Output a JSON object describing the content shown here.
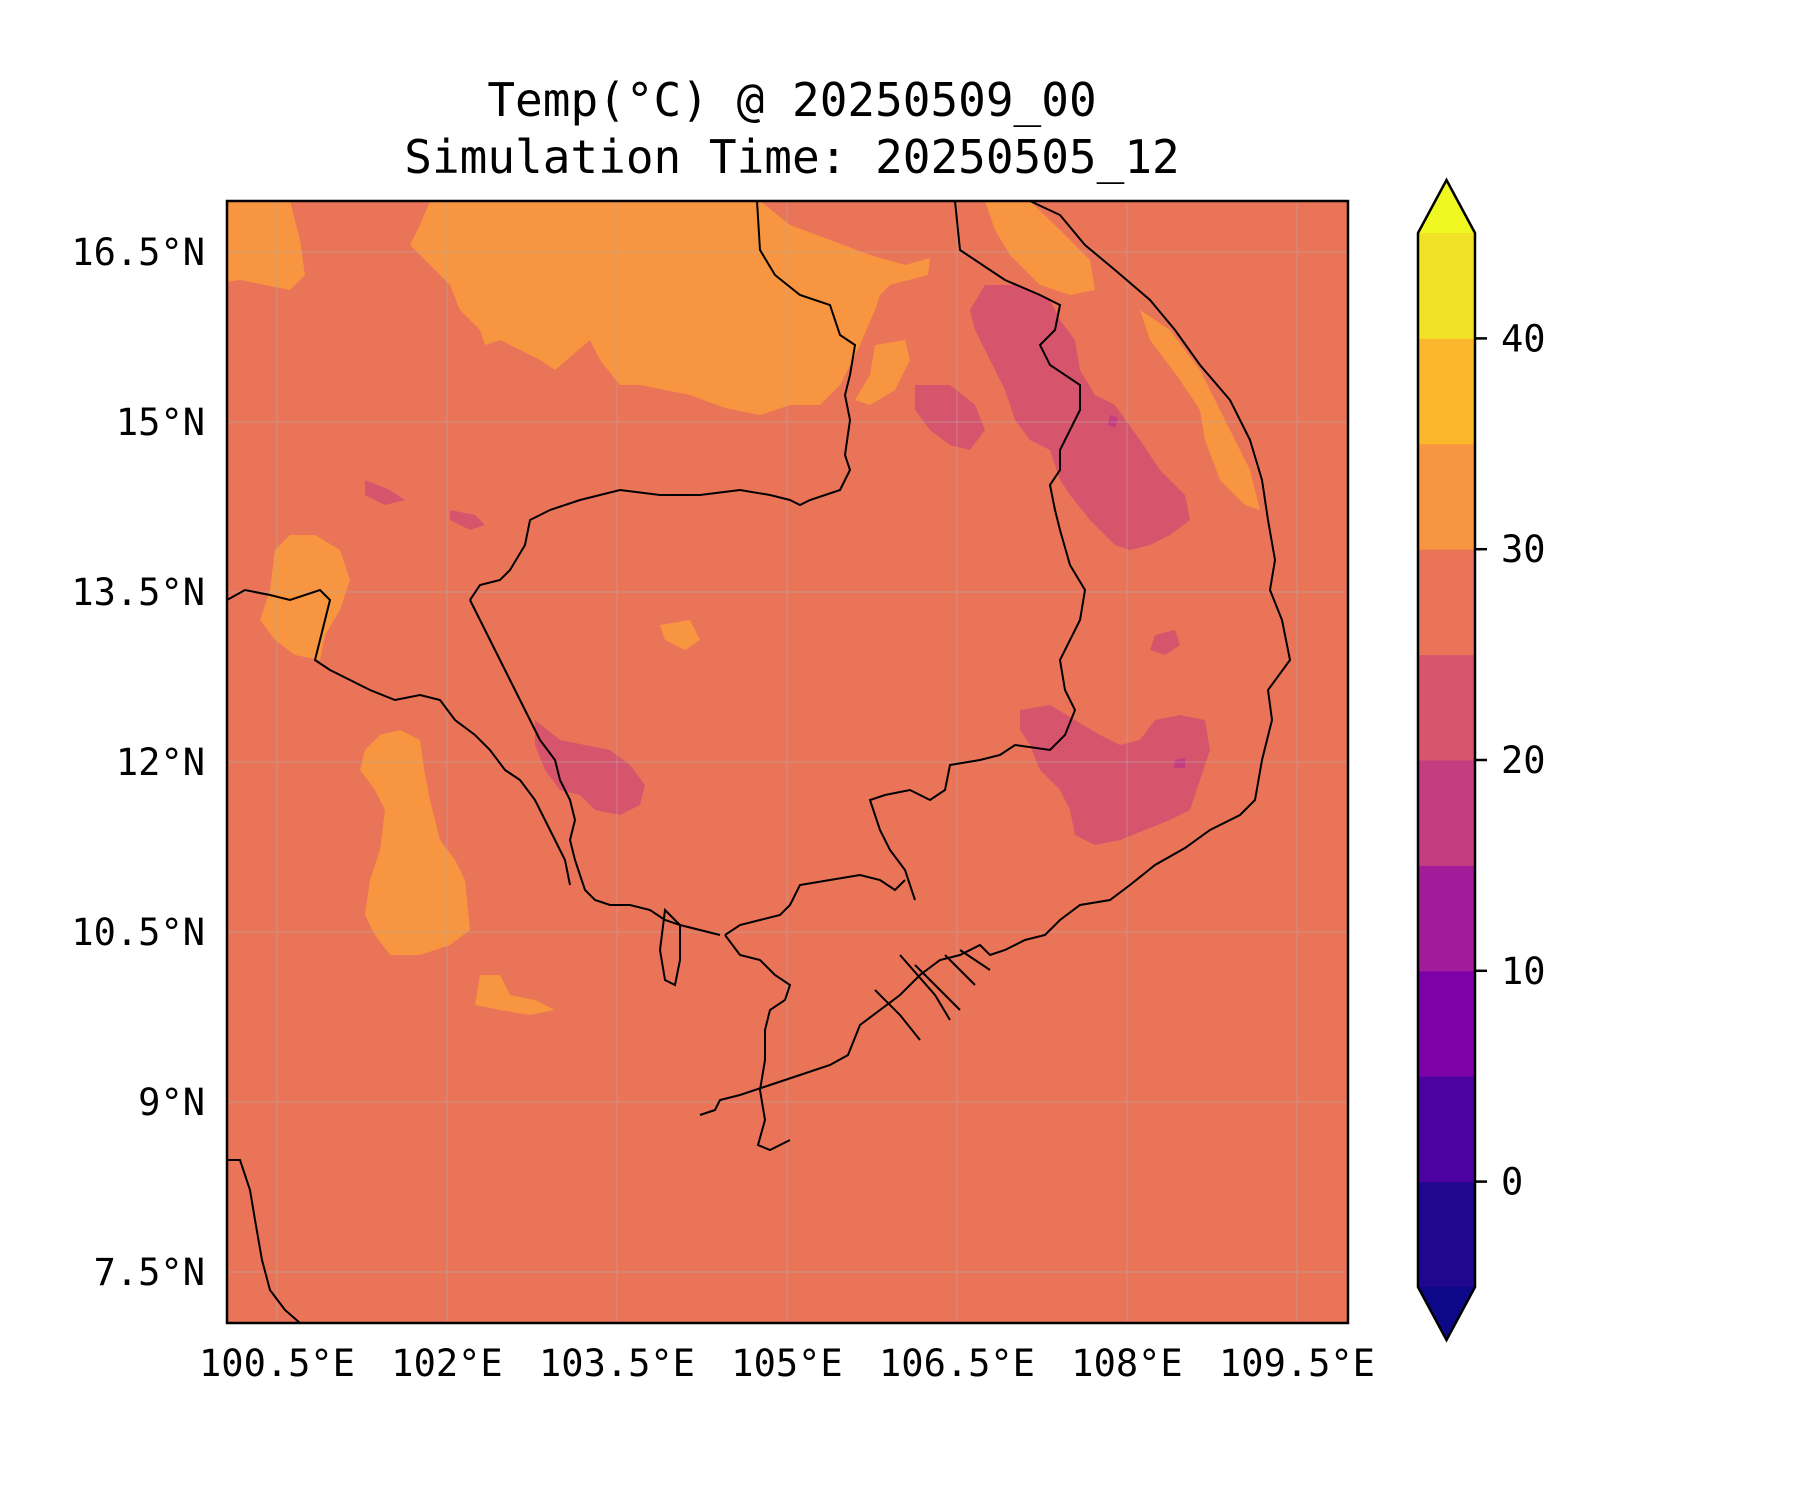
{
  "title": {
    "line1": "Temp(°C) @ 20250509_00",
    "line2": "Simulation Time: 20250505_12"
  },
  "axes": {
    "x_ticks": [
      "100.5°E",
      "102°E",
      "103.5°E",
      "105°E",
      "106.5°E",
      "108°E",
      "109.5°E"
    ],
    "y_ticks": [
      "16.5°N",
      "15°N",
      "13.5°N",
      "12°N",
      "10.5°N",
      "9°N",
      "7.5°N"
    ]
  },
  "colorbar": {
    "ticks": [
      "40",
      "30",
      "20",
      "10",
      "0"
    ],
    "tick_values": [
      40,
      30,
      20,
      10,
      0
    ],
    "levels": [
      -5,
      0,
      5,
      10,
      15,
      20,
      25,
      30,
      35,
      40,
      45
    ],
    "colors": [
      "#21078f",
      "#4c02a1",
      "#7c02a8",
      "#a21c9a",
      "#c33d80",
      "#d6556d",
      "#ea7457",
      "#f89540",
      "#fbb82c",
      "#f2e227"
    ],
    "under_color": "#0d0887",
    "over_color": "#eff821",
    "extend": "both"
  },
  "map": {
    "background_color": "#ea7457",
    "grid": true,
    "region_colors": {
      "warm": "#f89540",
      "cool": "#d6556d",
      "cold": "#c33d80"
    }
  }
}
